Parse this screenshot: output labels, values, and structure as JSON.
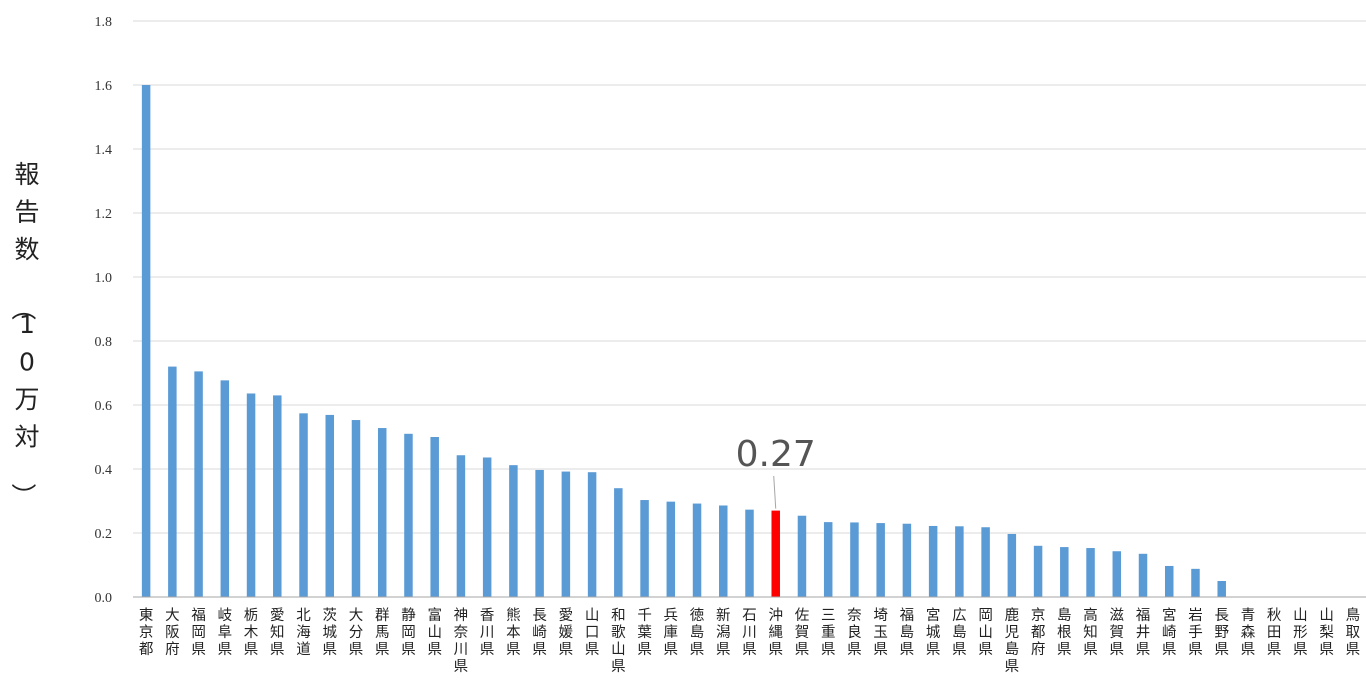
{
  "chart_data": {
    "type": "bar",
    "ylabel": "報告数（10万対）",
    "ylim": [
      0,
      1.8
    ],
    "yticks": [
      "0.0",
      "0.2",
      "0.4",
      "0.6",
      "0.8",
      "1.0",
      "1.2",
      "1.4",
      "1.6",
      "1.8"
    ],
    "grid": true,
    "legend": "none",
    "colors": {
      "bar": "#5b9bd5",
      "highlight": "#ff0000",
      "grid": "#d9d9d9",
      "axis": "#a6a6a6"
    },
    "highlight_index": 24,
    "annotation": {
      "text": "0.27",
      "index": 24
    },
    "categories": [
      "東京都",
      "大阪府",
      "福岡県",
      "岐阜県",
      "栃木県",
      "愛知県",
      "北海道",
      "茨城県",
      "大分県",
      "群馬県",
      "静岡県",
      "富山県",
      "神奈川県",
      "香川県",
      "熊本県",
      "長崎県",
      "愛媛県",
      "山口県",
      "和歌山県",
      "千葉県",
      "兵庫県",
      "徳島県",
      "新潟県",
      "石川県",
      "沖縄県",
      "佐賀県",
      "三重県",
      "奈良県",
      "埼玉県",
      "福島県",
      "宮城県",
      "広島県",
      "岡山県",
      "鹿児島県",
      "京都府",
      "島根県",
      "高知県",
      "滋賀県",
      "福井県",
      "宮崎県",
      "岩手県",
      "長野県",
      "青森県",
      "秋田県",
      "山形県",
      "山梨県",
      "鳥取県"
    ],
    "values": [
      1.6,
      0.72,
      0.705,
      0.677,
      0.636,
      0.63,
      0.574,
      0.569,
      0.553,
      0.528,
      0.51,
      0.5,
      0.443,
      0.436,
      0.412,
      0.397,
      0.392,
      0.39,
      0.34,
      0.303,
      0.298,
      0.292,
      0.286,
      0.273,
      0.27,
      0.254,
      0.234,
      0.233,
      0.231,
      0.229,
      0.222,
      0.221,
      0.218,
      0.197,
      0.16,
      0.156,
      0.153,
      0.143,
      0.135,
      0.097,
      0.088,
      0.05,
      0,
      0,
      0,
      0,
      0
    ]
  }
}
